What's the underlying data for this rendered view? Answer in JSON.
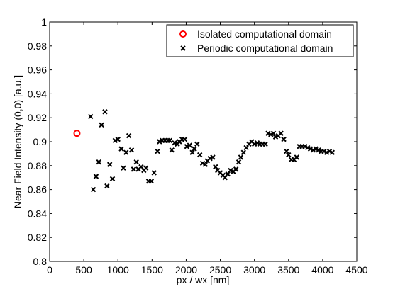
{
  "chart_data": {
    "type": "scatter",
    "xlabel": "px / wx [nm]",
    "ylabel": "Near Field Intensity (0,0) [a.u.]",
    "xlim": [
      0,
      4500
    ],
    "ylim": [
      0.8,
      1.0
    ],
    "xticks": [
      0,
      500,
      1000,
      1500,
      2000,
      2500,
      3000,
      3500,
      4000,
      4500
    ],
    "yticks": [
      0.8,
      0.82,
      0.84,
      0.86,
      0.88,
      0.9,
      0.92,
      0.94,
      0.96,
      0.98,
      1
    ],
    "xtick_labels": [
      "0",
      "500",
      "1000",
      "1500",
      "2000",
      "2500",
      "3000",
      "3500",
      "4000",
      "4500"
    ],
    "ytick_labels": [
      "0.8",
      "0.82",
      "0.84",
      "0.86",
      "0.88",
      "0.9",
      "0.92",
      "0.94",
      "0.96",
      "0.98",
      "1"
    ],
    "grid": false,
    "legend_position": "top-right",
    "series": [
      {
        "name": "Isolated computational domain",
        "marker": "circle",
        "color": "#ff0000",
        "points": [
          [
            400,
            0.907
          ]
        ]
      },
      {
        "name": "Periodic computational domain",
        "marker": "x",
        "color": "#000000",
        "points": [
          [
            600,
            0.921
          ],
          [
            640,
            0.86
          ],
          [
            680,
            0.871
          ],
          [
            720,
            0.883
          ],
          [
            760,
            0.914
          ],
          [
            810,
            0.925
          ],
          [
            840,
            0.863
          ],
          [
            880,
            0.881
          ],
          [
            920,
            0.869
          ],
          [
            960,
            0.901
          ],
          [
            1000,
            0.902
          ],
          [
            1050,
            0.894
          ],
          [
            1080,
            0.878
          ],
          [
            1120,
            0.891
          ],
          [
            1160,
            0.905
          ],
          [
            1200,
            0.893
          ],
          [
            1230,
            0.877
          ],
          [
            1270,
            0.883
          ],
          [
            1300,
            0.877
          ],
          [
            1340,
            0.879
          ],
          [
            1380,
            0.876
          ],
          [
            1410,
            0.878
          ],
          [
            1450,
            0.867
          ],
          [
            1490,
            0.867
          ],
          [
            1530,
            0.874
          ],
          [
            1580,
            0.892
          ],
          [
            1610,
            0.9
          ],
          [
            1650,
            0.901
          ],
          [
            1690,
            0.901
          ],
          [
            1730,
            0.901
          ],
          [
            1760,
            0.901
          ],
          [
            1790,
            0.893
          ],
          [
            1830,
            0.899
          ],
          [
            1870,
            0.898
          ],
          [
            1900,
            0.9
          ],
          [
            1940,
            0.902
          ],
          [
            1980,
            0.902
          ],
          [
            2010,
            0.896
          ],
          [
            2050,
            0.897
          ],
          [
            2090,
            0.891
          ],
          [
            2120,
            0.894
          ],
          [
            2160,
            0.898
          ],
          [
            2200,
            0.889
          ],
          [
            2240,
            0.882
          ],
          [
            2280,
            0.881
          ],
          [
            2310,
            0.884
          ],
          [
            2350,
            0.886
          ],
          [
            2390,
            0.887
          ],
          [
            2430,
            0.879
          ],
          [
            2460,
            0.876
          ],
          [
            2500,
            0.874
          ],
          [
            2540,
            0.872
          ],
          [
            2570,
            0.87
          ],
          [
            2610,
            0.873
          ],
          [
            2650,
            0.876
          ],
          [
            2690,
            0.875
          ],
          [
            2730,
            0.877
          ],
          [
            2770,
            0.883
          ],
          [
            2800,
            0.887
          ],
          [
            2840,
            0.891
          ],
          [
            2880,
            0.895
          ],
          [
            2920,
            0.898
          ],
          [
            2960,
            0.9
          ],
          [
            3000,
            0.898
          ],
          [
            3040,
            0.899
          ],
          [
            3080,
            0.898
          ],
          [
            3120,
            0.898
          ],
          [
            3160,
            0.898
          ],
          [
            3200,
            0.907
          ],
          [
            3240,
            0.906
          ],
          [
            3280,
            0.907
          ],
          [
            3310,
            0.904
          ],
          [
            3350,
            0.905
          ],
          [
            3390,
            0.907
          ],
          [
            3430,
            0.902
          ],
          [
            3470,
            0.892
          ],
          [
            3500,
            0.889
          ],
          [
            3540,
            0.885
          ],
          [
            3580,
            0.885
          ],
          [
            3620,
            0.887
          ],
          [
            3660,
            0.896
          ],
          [
            3700,
            0.896
          ],
          [
            3740,
            0.896
          ],
          [
            3780,
            0.895
          ],
          [
            3820,
            0.894
          ],
          [
            3860,
            0.893
          ],
          [
            3900,
            0.894
          ],
          [
            3940,
            0.893
          ],
          [
            3980,
            0.892
          ],
          [
            4020,
            0.892
          ],
          [
            4060,
            0.891
          ],
          [
            4100,
            0.892
          ],
          [
            4140,
            0.891
          ]
        ]
      }
    ]
  }
}
